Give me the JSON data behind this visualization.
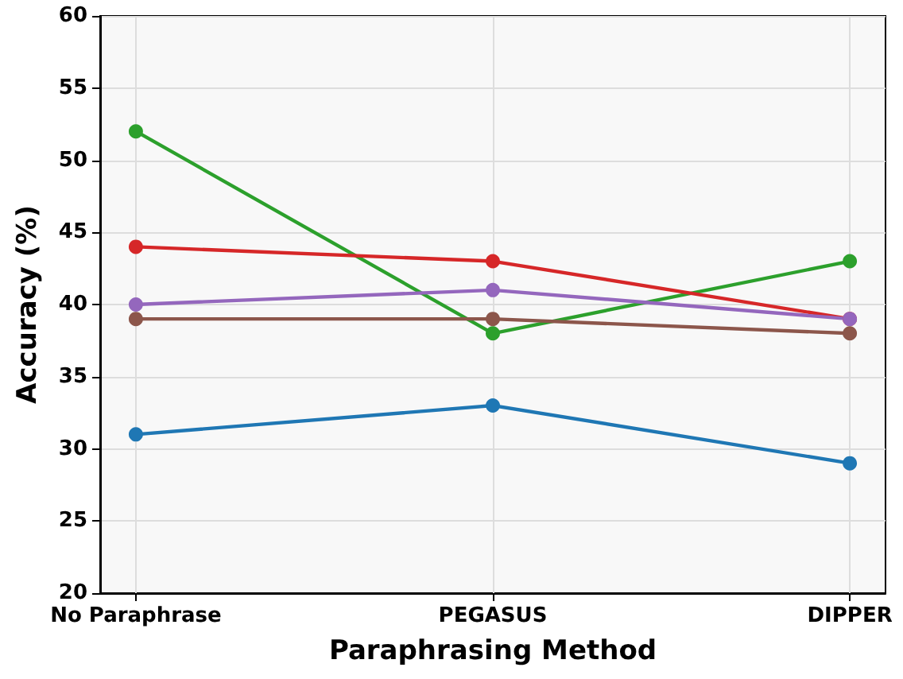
{
  "chart_data": {
    "type": "line",
    "xlabel": "Paraphrasing Method",
    "ylabel": "Accuracy (%)",
    "categories": [
      "No Paraphrase",
      "PEGASUS",
      "DIPPER"
    ],
    "series": [
      {
        "color": "#1f77b4",
        "values": [
          31,
          33,
          29
        ]
      },
      {
        "color": "#2ca02c",
        "values": [
          52,
          38,
          43
        ]
      },
      {
        "color": "#d62728",
        "values": [
          44,
          43,
          39
        ]
      },
      {
        "color": "#9467bd",
        "values": [
          40,
          41,
          39
        ]
      },
      {
        "color": "#8c564b",
        "values": [
          39,
          39,
          38
        ]
      }
    ],
    "ylim": [
      20,
      60
    ],
    "yticks": [
      20,
      25,
      30,
      35,
      40,
      45,
      50,
      55,
      60
    ],
    "grid": true,
    "marker": "circle",
    "line_style": "solid"
  }
}
